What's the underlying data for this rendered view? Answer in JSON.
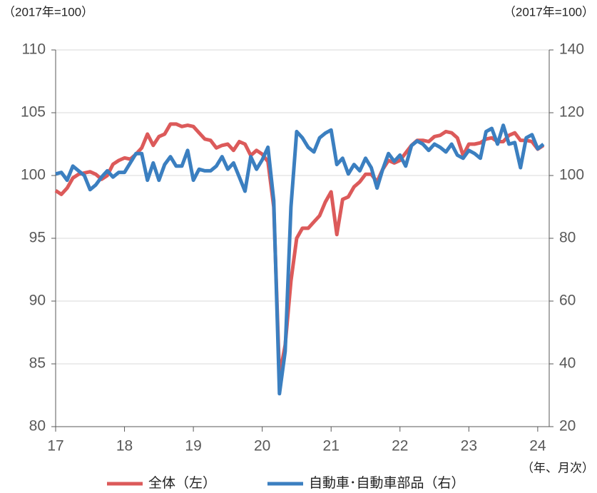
{
  "chart_data": {
    "type": "line",
    "annotations": [
      "（2017年=100）",
      "（2017年=100）",
      "（年、月次）"
    ],
    "x": [
      17,
      17.083,
      17.167,
      17.25,
      17.333,
      17.417,
      17.5,
      17.583,
      17.667,
      17.75,
      17.833,
      17.917,
      18,
      18.083,
      18.167,
      18.25,
      18.333,
      18.417,
      18.5,
      18.583,
      18.667,
      18.75,
      18.833,
      18.917,
      19,
      19.083,
      19.167,
      19.25,
      19.333,
      19.417,
      19.5,
      19.583,
      19.667,
      19.75,
      19.833,
      19.917,
      20,
      20.083,
      20.167,
      20.25,
      20.333,
      20.417,
      20.5,
      20.583,
      20.667,
      20.75,
      20.833,
      20.917,
      21,
      21.083,
      21.167,
      21.25,
      21.333,
      21.417,
      21.5,
      21.583,
      21.667,
      21.75,
      21.833,
      21.917,
      22,
      22.083,
      22.167,
      22.25,
      22.333,
      22.417,
      22.5,
      22.583,
      22.667,
      22.75,
      22.833,
      22.917,
      23,
      23.083,
      23.167,
      23.25,
      23.333,
      23.417,
      23.5,
      23.583,
      23.667,
      23.75,
      23.833,
      23.917,
      24,
      24.083
    ],
    "series": [
      {
        "name": "全体（左）",
        "color": "#dc5a5a",
        "values": [
          98.8,
          98.5,
          99.0,
          99.8,
          100.1,
          100.2,
          100.3,
          100.1,
          99.7,
          100.0,
          100.9,
          101.2,
          101.4,
          101.3,
          101.7,
          102.2,
          103.3,
          102.4,
          103.1,
          103.3,
          104.1,
          104.1,
          103.9,
          104.0,
          103.9,
          103.4,
          102.9,
          102.8,
          102.2,
          102.4,
          102.5,
          102.0,
          102.7,
          102.5,
          101.6,
          102.0,
          101.7,
          101.1,
          97.5,
          84.0,
          86.5,
          91.6,
          95.0,
          95.8,
          95.8,
          96.3,
          96.8,
          97.9,
          98.7,
          95.3,
          98.1,
          98.3,
          99.1,
          99.5,
          100.1,
          100.1,
          99.5,
          100.5,
          101.2,
          101.0,
          101.2,
          101.8,
          102.4,
          102.8,
          102.8,
          102.7,
          103.1,
          103.2,
          103.5,
          103.4,
          103.0,
          101.6,
          102.5,
          102.5,
          102.6,
          102.9,
          103.0,
          102.7,
          102.7,
          103.2,
          103.4,
          102.8,
          102.8,
          102.7,
          102.1,
          102.4
        ]
      },
      {
        "name": "自動車･自動車部品（右）",
        "color": "#3b7fc0",
        "axis": "y2",
        "values": [
          100.5,
          101,
          98.5,
          103,
          101.5,
          100,
          95.5,
          97,
          99.5,
          101.5,
          99.5,
          101,
          101,
          104,
          107,
          107,
          98.5,
          104,
          98.5,
          103.5,
          106,
          103,
          103,
          108,
          98.5,
          102,
          101.5,
          101.5,
          103,
          106,
          102,
          104,
          99.5,
          95,
          106,
          102,
          105,
          109,
          92,
          30.5,
          44,
          90,
          114,
          112,
          109,
          107.5,
          112,
          113.5,
          114.5,
          103.5,
          105.5,
          100.5,
          103.5,
          101.5,
          105.5,
          102.5,
          96,
          102,
          107,
          104.5,
          106.5,
          103,
          109.5,
          111,
          110,
          108,
          110,
          109,
          107.5,
          110,
          106.5,
          105.5,
          108,
          107,
          105.5,
          114,
          115,
          110,
          116,
          110,
          110.5,
          102.5,
          112,
          113,
          108.5,
          110
        ]
      }
    ],
    "xlim": [
      17,
      24.167
    ],
    "xticks": [
      17,
      18,
      19,
      20,
      21,
      22,
      23,
      24
    ],
    "ylim": [
      80,
      110
    ],
    "yticks": [
      80,
      85,
      90,
      95,
      100,
      105,
      110
    ],
    "y2lim": [
      20,
      140
    ],
    "y2ticks": [
      20,
      40,
      60,
      80,
      100,
      120,
      140
    ],
    "grid": true,
    "legend": "bottom"
  }
}
